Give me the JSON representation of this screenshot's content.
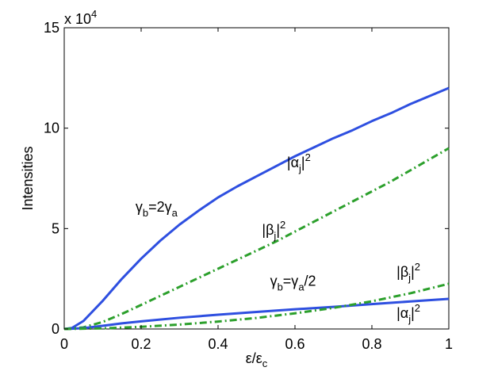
{
  "chart_data": {
    "type": "line",
    "title": "",
    "xlabel_main": "ε/ε",
    "xlabel_sub": "c",
    "ylabel": "Intensities",
    "xlim": [
      0,
      1
    ],
    "ylim": [
      0,
      150000
    ],
    "x_ticks": [
      0,
      0.2,
      0.4,
      0.6,
      0.8,
      1
    ],
    "x_tick_labels": [
      "0",
      "0.2",
      "0.4",
      "0.6",
      "0.8",
      "1"
    ],
    "y_ticks": [
      0,
      50000,
      100000,
      150000
    ],
    "y_tick_labels": [
      "0",
      "5",
      "10",
      "15"
    ],
    "y_multiplier_base": "x 10",
    "y_multiplier_exp": "4",
    "grid": false,
    "series": [
      {
        "color": "#2e4fe0",
        "style": "solid",
        "x": [
          0,
          0.02,
          0.05,
          0.1,
          0.15,
          0.2,
          0.25,
          0.3,
          0.35,
          0.4,
          0.45,
          0.5,
          0.55,
          0.6,
          0.65,
          0.7,
          0.75,
          0.8,
          0.85,
          0.9,
          0.95,
          1.0
        ],
        "y": [
          0,
          500,
          4000,
          14000,
          25000,
          35000,
          44000,
          52000,
          59000,
          65500,
          71000,
          76000,
          81000,
          86000,
          90500,
          95000,
          99000,
          103500,
          107500,
          112000,
          116000,
          120000
        ]
      },
      {
        "color": "#2ca02c",
        "style": "dashdot",
        "x": [
          0,
          0.05,
          0.1,
          0.15,
          0.2,
          0.25,
          0.3,
          0.35,
          0.4,
          0.45,
          0.5,
          0.55,
          0.6,
          0.65,
          0.7,
          0.75,
          0.8,
          0.85,
          0.9,
          0.95,
          1.0
        ],
        "y": [
          0,
          800,
          3500,
          7500,
          12000,
          16500,
          21000,
          25500,
          30000,
          34500,
          39000,
          43500,
          48500,
          53500,
          58500,
          63500,
          68500,
          73500,
          79000,
          84500,
          90000
        ]
      },
      {
        "color": "#2e4fe0",
        "style": "solid",
        "x": [
          0,
          0.05,
          0.1,
          0.15,
          0.2,
          0.3,
          0.4,
          0.5,
          0.6,
          0.7,
          0.8,
          0.9,
          1.0
        ],
        "y": [
          0,
          400,
          1600,
          2800,
          3800,
          5600,
          7100,
          8500,
          9800,
          11000,
          12400,
          13700,
          15000
        ]
      },
      {
        "color": "#2ca02c",
        "style": "dashdot",
        "x": [
          0,
          0.1,
          0.2,
          0.3,
          0.4,
          0.5,
          0.6,
          0.7,
          0.8,
          0.9,
          1.0
        ],
        "y": [
          0,
          300,
          1100,
          2200,
          3700,
          5500,
          7800,
          10500,
          13800,
          17800,
          22500
        ]
      }
    ],
    "annotations": [
      {
        "id": "alpha-upper",
        "x": 0.61,
        "y": 80500,
        "parts": [
          {
            "t": "|α"
          },
          {
            "t": "j",
            "sub": true
          },
          {
            "t": "|"
          },
          {
            "t": "2",
            "sup": true
          }
        ]
      },
      {
        "id": "gamma-upper",
        "x": 0.24,
        "y": 58500,
        "parts": [
          {
            "t": "γ"
          },
          {
            "t": "b",
            "sub": true
          },
          {
            "t": "=2γ"
          },
          {
            "t": "a",
            "sub": true
          }
        ]
      },
      {
        "id": "beta-upper",
        "x": 0.545,
        "y": 47000,
        "parts": [
          {
            "t": "|β"
          },
          {
            "t": "j",
            "sub": true
          },
          {
            "t": "|"
          },
          {
            "t": "2",
            "sup": true
          }
        ]
      },
      {
        "id": "gamma-lower",
        "x": 0.595,
        "y": 21500,
        "parts": [
          {
            "t": "γ"
          },
          {
            "t": "b",
            "sub": true
          },
          {
            "t": "=γ"
          },
          {
            "t": "a",
            "sub": true
          },
          {
            "t": "/2"
          }
        ]
      },
      {
        "id": "beta-lower",
        "x": 0.895,
        "y": 26000,
        "parts": [
          {
            "t": "|β"
          },
          {
            "t": "j",
            "sub": true
          },
          {
            "t": "|"
          },
          {
            "t": "2",
            "sup": true
          }
        ]
      },
      {
        "id": "alpha-lower",
        "x": 0.895,
        "y": 5500,
        "parts": [
          {
            "t": "|α"
          },
          {
            "t": "j",
            "sub": true
          },
          {
            "t": "|"
          },
          {
            "t": "2",
            "sup": true
          }
        ]
      }
    ]
  }
}
